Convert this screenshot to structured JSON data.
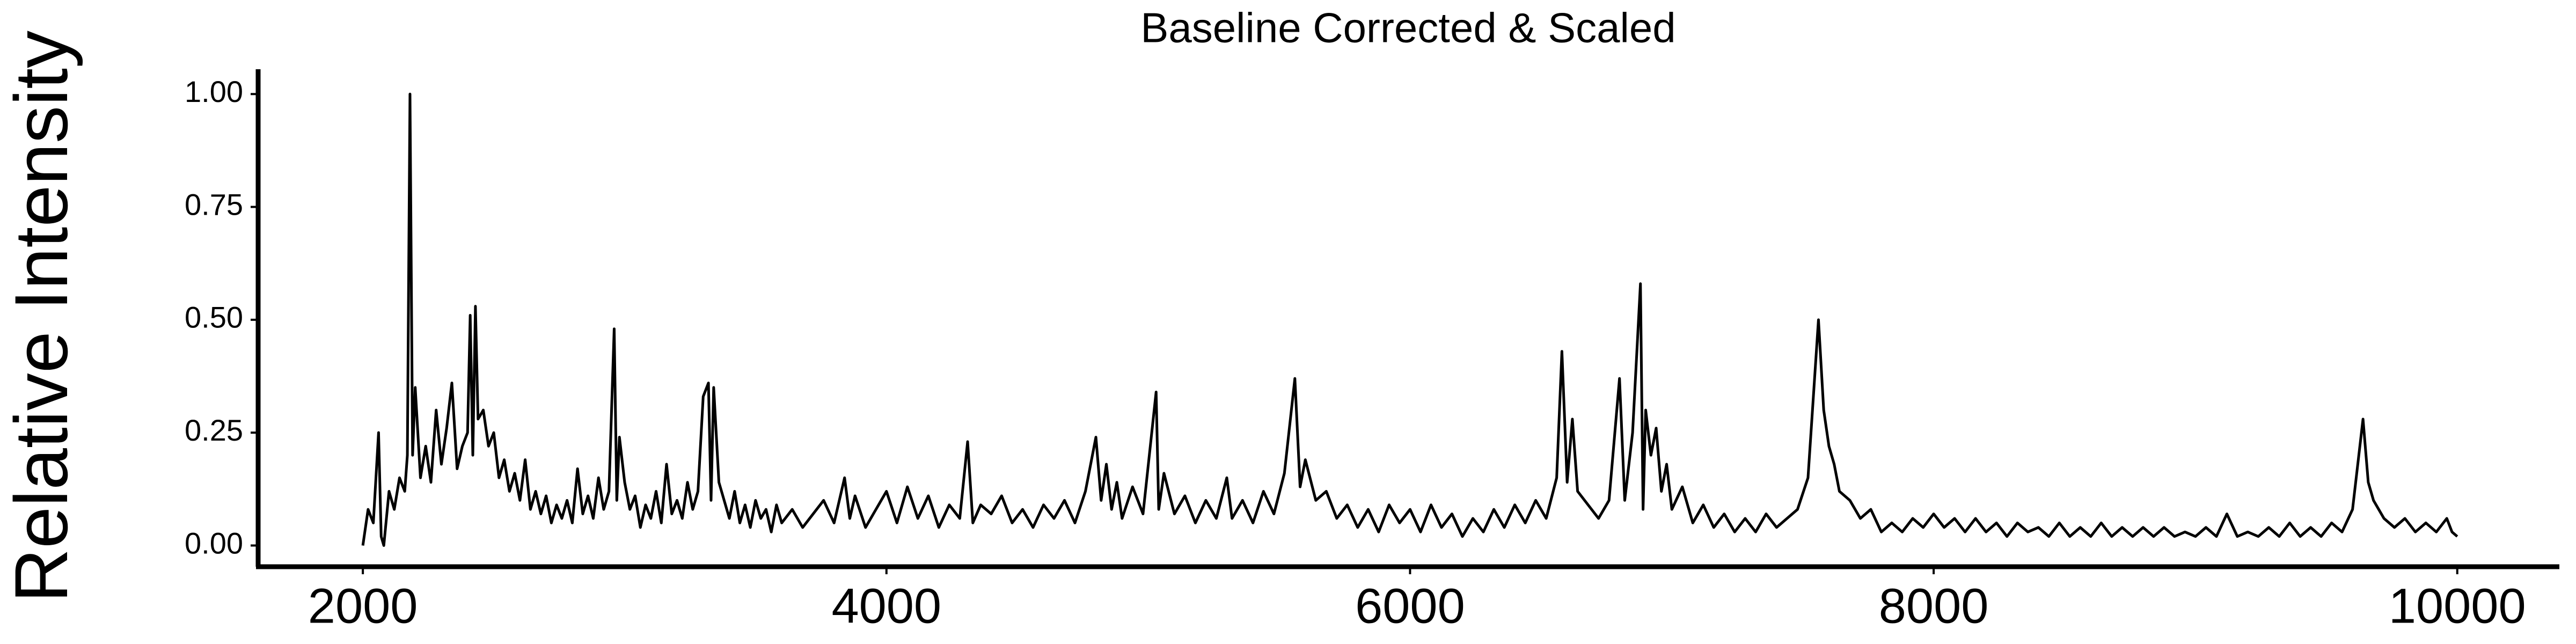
{
  "chart_data": {
    "type": "line",
    "title": "Baseline Corrected & Scaled",
    "y_label": "Relative Intensity",
    "color": "#000000",
    "grid": false,
    "xlim": [
      1600,
      10390
    ],
    "xticks": [
      2000,
      4000,
      6000,
      8000,
      10000
    ],
    "ylim": [
      -0.047,
      1.055
    ],
    "yticks": [
      {
        "value": 0,
        "label": "0.00"
      },
      0.25,
      {
        "value": 0.5,
        "label": "0.50"
      },
      0.75,
      {
        "value": 1,
        "label": "1.00"
      }
    ],
    "x": [
      2000,
      2020,
      2040,
      2060,
      2070,
      2080,
      2100,
      2120,
      2140,
      2160,
      2170,
      2180,
      2190,
      2200,
      2220,
      2240,
      2260,
      2280,
      2300,
      2320,
      2340,
      2360,
      2380,
      2400,
      2410,
      2420,
      2430,
      2440,
      2460,
      2480,
      2500,
      2520,
      2540,
      2560,
      2580,
      2600,
      2620,
      2640,
      2660,
      2680,
      2700,
      2720,
      2740,
      2760,
      2780,
      2800,
      2820,
      2840,
      2860,
      2880,
      2900,
      2920,
      2940,
      2960,
      2970,
      2980,
      3000,
      3020,
      3040,
      3060,
      3080,
      3100,
      3120,
      3140,
      3160,
      3180,
      3200,
      3220,
      3240,
      3260,
      3280,
      3300,
      3320,
      3330,
      3340,
      3360,
      3380,
      3400,
      3420,
      3440,
      3460,
      3480,
      3500,
      3520,
      3540,
      3560,
      3580,
      3600,
      3640,
      3680,
      3720,
      3760,
      3800,
      3840,
      3860,
      3880,
      3920,
      3960,
      4000,
      4040,
      4080,
      4120,
      4160,
      4200,
      4240,
      4280,
      4310,
      4330,
      4360,
      4400,
      4440,
      4480,
      4520,
      4560,
      4600,
      4640,
      4680,
      4720,
      4760,
      4800,
      4820,
      4840,
      4860,
      4880,
      4900,
      4940,
      4980,
      5030,
      5040,
      5060,
      5100,
      5140,
      5180,
      5220,
      5260,
      5300,
      5320,
      5360,
      5400,
      5440,
      5480,
      5520,
      5560,
      5580,
      5600,
      5640,
      5680,
      5720,
      5760,
      5800,
      5840,
      5880,
      5920,
      5960,
      6000,
      6040,
      6080,
      6120,
      6160,
      6200,
      6240,
      6280,
      6320,
      6360,
      6400,
      6440,
      6480,
      6520,
      6560,
      6580,
      6600,
      6620,
      6640,
      6680,
      6720,
      6760,
      6800,
      6820,
      6850,
      6880,
      6890,
      6900,
      6920,
      6940,
      6960,
      6980,
      7000,
      7040,
      7080,
      7120,
      7160,
      7200,
      7240,
      7280,
      7320,
      7360,
      7400,
      7440,
      7480,
      7520,
      7560,
      7580,
      7600,
      7620,
      7640,
      7680,
      7720,
      7760,
      7800,
      7840,
      7880,
      7920,
      7960,
      8000,
      8040,
      8080,
      8120,
      8160,
      8200,
      8240,
      8280,
      8320,
      8360,
      8400,
      8440,
      8480,
      8520,
      8560,
      8600,
      8640,
      8680,
      8720,
      8760,
      8800,
      8840,
      8880,
      8920,
      8960,
      9000,
      9040,
      9080,
      9120,
      9160,
      9200,
      9240,
      9280,
      9320,
      9360,
      9400,
      9440,
      9480,
      9520,
      9560,
      9600,
      9640,
      9660,
      9680,
      9720,
      9760,
      9800,
      9840,
      9880,
      9920,
      9960,
      9980,
      10000
    ],
    "values": [
      0.0,
      0.08,
      0.05,
      0.25,
      0.02,
      0.0,
      0.12,
      0.08,
      0.15,
      0.12,
      0.2,
      1.0,
      0.2,
      0.35,
      0.15,
      0.22,
      0.14,
      0.3,
      0.18,
      0.26,
      0.36,
      0.17,
      0.22,
      0.25,
      0.51,
      0.2,
      0.53,
      0.28,
      0.3,
      0.22,
      0.25,
      0.15,
      0.19,
      0.12,
      0.16,
      0.1,
      0.19,
      0.08,
      0.12,
      0.07,
      0.11,
      0.05,
      0.09,
      0.06,
      0.1,
      0.05,
      0.17,
      0.07,
      0.11,
      0.06,
      0.15,
      0.08,
      0.12,
      0.48,
      0.1,
      0.24,
      0.14,
      0.08,
      0.11,
      0.04,
      0.09,
      0.06,
      0.12,
      0.05,
      0.18,
      0.07,
      0.1,
      0.06,
      0.14,
      0.08,
      0.12,
      0.33,
      0.36,
      0.1,
      0.35,
      0.14,
      0.1,
      0.06,
      0.12,
      0.05,
      0.09,
      0.04,
      0.1,
      0.06,
      0.08,
      0.03,
      0.09,
      0.05,
      0.08,
      0.04,
      0.07,
      0.1,
      0.05,
      0.15,
      0.06,
      0.11,
      0.04,
      0.08,
      0.12,
      0.05,
      0.13,
      0.06,
      0.11,
      0.04,
      0.09,
      0.06,
      0.23,
      0.05,
      0.09,
      0.07,
      0.11,
      0.05,
      0.08,
      0.04,
      0.09,
      0.06,
      0.1,
      0.05,
      0.12,
      0.24,
      0.1,
      0.18,
      0.08,
      0.14,
      0.06,
      0.13,
      0.07,
      0.34,
      0.08,
      0.16,
      0.07,
      0.11,
      0.05,
      0.1,
      0.06,
      0.15,
      0.06,
      0.1,
      0.05,
      0.12,
      0.07,
      0.16,
      0.37,
      0.13,
      0.19,
      0.1,
      0.12,
      0.06,
      0.09,
      0.04,
      0.08,
      0.03,
      0.09,
      0.05,
      0.08,
      0.03,
      0.09,
      0.04,
      0.07,
      0.02,
      0.06,
      0.03,
      0.08,
      0.04,
      0.09,
      0.05,
      0.1,
      0.06,
      0.15,
      0.43,
      0.14,
      0.28,
      0.12,
      0.09,
      0.06,
      0.1,
      0.37,
      0.1,
      0.25,
      0.58,
      0.08,
      0.3,
      0.2,
      0.26,
      0.12,
      0.18,
      0.08,
      0.13,
      0.05,
      0.09,
      0.04,
      0.07,
      0.03,
      0.06,
      0.03,
      0.07,
      0.04,
      0.06,
      0.08,
      0.15,
      0.5,
      0.3,
      0.22,
      0.18,
      0.12,
      0.1,
      0.06,
      0.08,
      0.03,
      0.05,
      0.03,
      0.06,
      0.04,
      0.07,
      0.04,
      0.06,
      0.03,
      0.06,
      0.03,
      0.05,
      0.02,
      0.05,
      0.03,
      0.04,
      0.02,
      0.05,
      0.02,
      0.04,
      0.02,
      0.05,
      0.02,
      0.04,
      0.02,
      0.04,
      0.02,
      0.04,
      0.02,
      0.03,
      0.02,
      0.04,
      0.02,
      0.07,
      0.02,
      0.03,
      0.02,
      0.04,
      0.02,
      0.05,
      0.02,
      0.04,
      0.02,
      0.05,
      0.03,
      0.08,
      0.28,
      0.14,
      0.1,
      0.06,
      0.04,
      0.06,
      0.03,
      0.05,
      0.03,
      0.06,
      0.03,
      0.02
    ]
  }
}
